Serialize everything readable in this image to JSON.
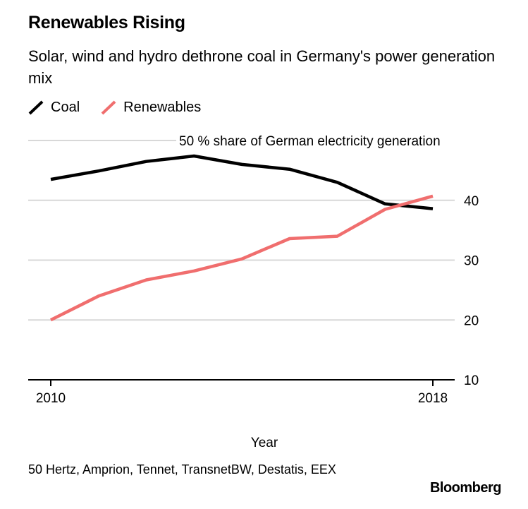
{
  "chart_data": {
    "type": "line",
    "title": "Renewables Rising",
    "subtitle": "Solar, wind and hydro dethrone coal in Germany's power generation mix",
    "xlabel": "Year",
    "ylabel": "",
    "x": [
      2010,
      2011,
      2012,
      2013,
      2014,
      2015,
      2016,
      2017,
      2018
    ],
    "xtick_labels": [
      "2010",
      "2018"
    ],
    "xlim": [
      2010,
      2018
    ],
    "ylim": [
      10,
      50
    ],
    "yticks": [
      {
        "value": 10,
        "label": "10"
      },
      {
        "value": 20,
        "label": "20"
      },
      {
        "value": 30,
        "label": "30"
      },
      {
        "value": 40,
        "label": "40"
      },
      {
        "value": 50,
        "label": "50 % share of German electricity generation"
      }
    ],
    "grid": true,
    "legend_position": "top-left",
    "series": [
      {
        "name": "Coal",
        "color": "#000000",
        "values": [
          43.5,
          44.9,
          46.5,
          47.4,
          46.0,
          45.2,
          43.0,
          39.4,
          38.6
        ]
      },
      {
        "name": "Renewables",
        "color": "#f06e6e",
        "values": [
          20.0,
          24.0,
          26.7,
          28.2,
          30.2,
          33.6,
          34.0,
          38.5,
          40.7
        ]
      }
    ]
  },
  "source": "50 Hertz, Amprion, Tennet, TransnetBW, Destatis, EEX",
  "brand": "Bloomberg",
  "colors": {
    "grid": "#d8d8d8",
    "axis": "#000000"
  }
}
